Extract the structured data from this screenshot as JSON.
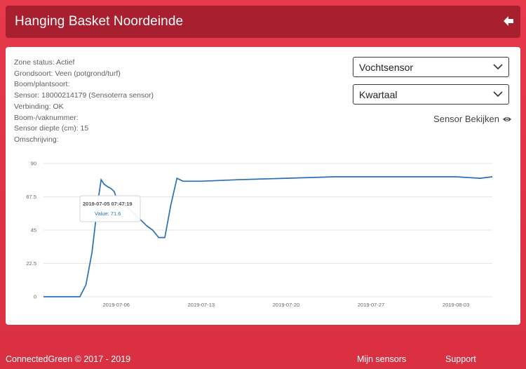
{
  "header": {
    "title": "Hanging Basket Noordeinde"
  },
  "info": {
    "lines": [
      "Zone status: Actief",
      "Grondsoort: Veen (potgrond/turf)",
      "Boom/plantsoort:",
      "Sensor: 18000214179 (Sensoterra sensor)",
      "Verbinding: OK",
      "Boom-/vaknummer:",
      "Sensor diepte (cm): 15",
      "Omschrijving:"
    ]
  },
  "controls": {
    "sensor_type": "Vochtsensor",
    "period": "Kwartaal",
    "view_sensor": "Sensor Bekijken"
  },
  "tooltip": {
    "date": "2019-07-05 07:47:19",
    "value": "Value: 71.6"
  },
  "chart_data": {
    "type": "line",
    "x_tick_labels": [
      "2019-07-06",
      "2019-07-13",
      "2019-07-20",
      "2019-07-27",
      "2019-08-03"
    ],
    "y_ticks": [
      0,
      22.5,
      45,
      67.5,
      90
    ],
    "y_tick_labels": [
      "0",
      "22.5",
      "45",
      "67.5",
      "90"
    ],
    "ylim": [
      0,
      90
    ],
    "xlim": [
      "2019-06-30",
      "2019-08-06"
    ],
    "series": [
      {
        "color": "#2a6fb3",
        "points": [
          [
            "2019-06-30",
            0
          ],
          [
            "2019-07-02",
            0
          ],
          [
            "2019-07-03",
            0
          ],
          [
            "2019-07-03T12:00",
            8
          ],
          [
            "2019-07-04",
            30
          ],
          [
            "2019-07-04T12:00",
            65
          ],
          [
            "2019-07-04T18:00",
            79
          ],
          [
            "2019-07-05",
            76
          ],
          [
            "2019-07-05T08:00",
            74
          ],
          [
            "2019-07-05T14:00",
            73
          ],
          [
            "2019-07-05T20:00",
            71
          ],
          [
            "2019-07-06",
            67
          ],
          [
            "2019-07-07",
            60
          ],
          [
            "2019-07-08",
            52
          ],
          [
            "2019-07-08T12:00",
            48
          ],
          [
            "2019-07-09",
            45
          ],
          [
            "2019-07-09T12:00",
            40
          ],
          [
            "2019-07-10",
            40
          ],
          [
            "2019-07-10T12:00",
            62
          ],
          [
            "2019-07-11",
            80
          ],
          [
            "2019-07-11T12:00",
            78
          ],
          [
            "2019-07-13",
            78
          ],
          [
            "2019-07-16",
            79
          ],
          [
            "2019-07-20",
            80
          ],
          [
            "2019-07-24",
            81
          ],
          [
            "2019-07-27",
            81
          ],
          [
            "2019-07-30",
            81
          ],
          [
            "2019-08-03",
            81
          ],
          [
            "2019-08-05",
            80
          ],
          [
            "2019-08-06",
            81
          ]
        ]
      }
    ]
  },
  "footer": {
    "copyright": "ConnectedGreen © 2017 - 2019",
    "links": [
      "Mijn sensors",
      "Support"
    ]
  }
}
